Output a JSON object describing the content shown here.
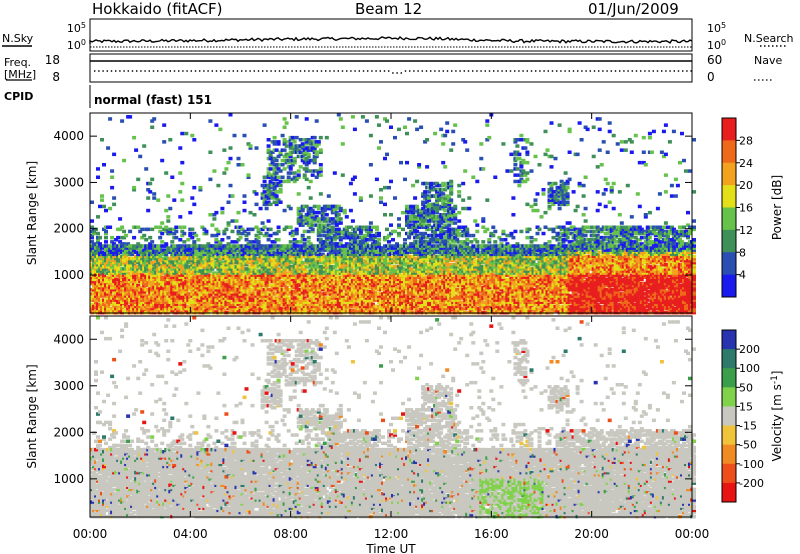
{
  "header": {
    "title": "Hokkaido (fitACF)",
    "beam": "Beam 12",
    "date": "01/Jun/2009"
  },
  "status_panels": {
    "nsky_label": "N.Sky",
    "nsearch_label": "N.Search",
    "noise_ticks": [
      "10^5",
      "10^0"
    ],
    "freq_label": "Freq.",
    "freq_unit": "[MHz]",
    "freq_ticks": [
      "18",
      "8"
    ],
    "nave_label": "Nave",
    "nave_ticks": [
      "60",
      "0"
    ],
    "cpid_label": "CPID",
    "cpid_value": "normal (fast) 151"
  },
  "chart_data": [
    {
      "type": "heatmap",
      "panel": "power",
      "xlabel": "Time UT",
      "ylabel": "Slant Range [km]",
      "xlim": [
        0,
        24
      ],
      "ylim": [
        180,
        4500
      ],
      "x_ticks": [
        "00:00",
        "04:00",
        "08:00",
        "12:00",
        "16:00",
        "20:00",
        "00:00"
      ],
      "y_ticks": [
        1000,
        2000,
        3000,
        4000
      ],
      "colorbar": {
        "label": "Power [dB]",
        "ticks": [
          4,
          8,
          12,
          16,
          20,
          24,
          28
        ],
        "colors": [
          "#1a1aee",
          "#2a4fb3",
          "#3e8f58",
          "#66c24a",
          "#e3e01a",
          "#f2a21e",
          "#ee6a1a",
          "#e81e1e"
        ]
      }
    },
    {
      "type": "heatmap",
      "panel": "velocity",
      "xlabel": "Time UT",
      "ylabel": "Slant Range [km]",
      "xlim": [
        0,
        24
      ],
      "ylim": [
        180,
        4500
      ],
      "x_ticks": [
        "00:00",
        "04:00",
        "08:00",
        "12:00",
        "16:00",
        "20:00",
        "00:00"
      ],
      "y_ticks": [
        1000,
        2000,
        3000,
        4000
      ],
      "colorbar": {
        "label": "Velocity [m s^-1]",
        "ticks": [
          200,
          100,
          50,
          15,
          -15,
          -50,
          -100,
          -200
        ],
        "colors": [
          "#2833b0",
          "#2e7a6a",
          "#3a9e4a",
          "#7fd24a",
          "#c8c8c0",
          "#f0c43a",
          "#f08a22",
          "#ee4e1a",
          "#e81414"
        ]
      }
    }
  ]
}
